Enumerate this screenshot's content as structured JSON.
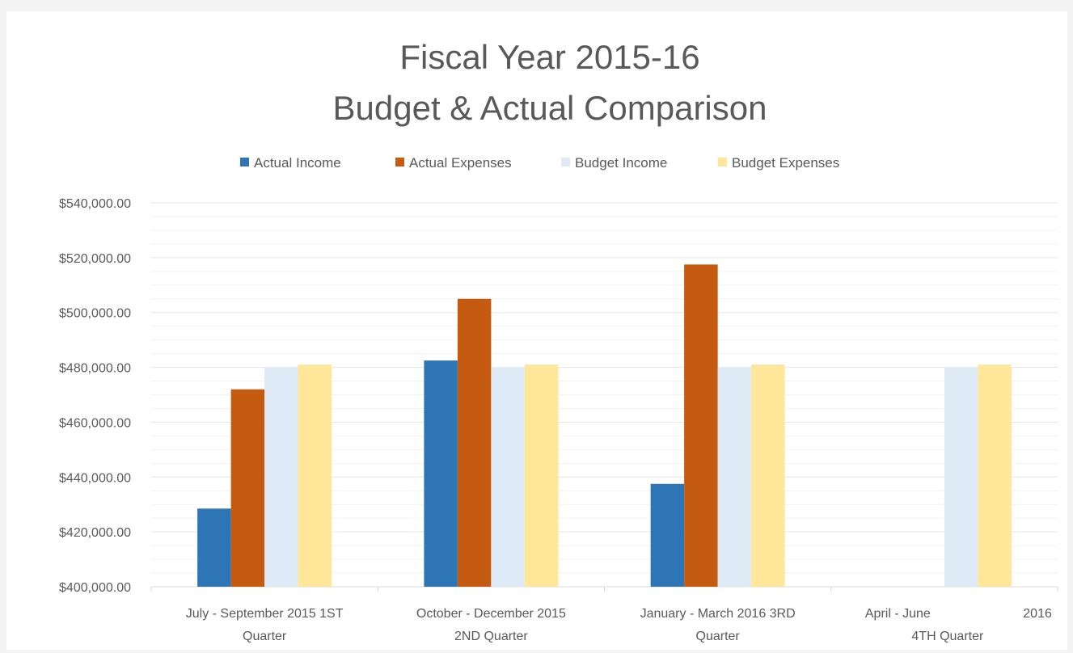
{
  "chart_data": {
    "type": "bar",
    "title": [
      "Fiscal Year 2015-16",
      "Budget & Actual Comparison"
    ],
    "categories": [
      [
        "July - September 2015 1ST",
        "Quarter"
      ],
      [
        "October - December 2015",
        "2ND Quarter"
      ],
      [
        "January - March 2016  3RD",
        "Quarter"
      ],
      [
        "April - June",
        "2016",
        "4TH Quarter"
      ]
    ],
    "series": [
      {
        "name": "Actual Income",
        "color": "#2e75b6",
        "values": [
          428500,
          482500,
          437500,
          null
        ]
      },
      {
        "name": "Actual Expenses",
        "color": "#c55a11",
        "values": [
          472000,
          505000,
          517500,
          null
        ]
      },
      {
        "name": "Budget Income",
        "color": "#deebf7",
        "values": [
          480000,
          480000,
          480000,
          480000
        ]
      },
      {
        "name": "Budget Expenses",
        "color": "#ffe699",
        "values": [
          481000,
          481000,
          481000,
          481000
        ]
      }
    ],
    "ylim": [
      400000,
      540000
    ],
    "ytick_labels": [
      "$400,000.00",
      "$420,000.00",
      "$440,000.00",
      "$460,000.00",
      "$480,000.00",
      "$500,000.00",
      "$520,000.00",
      "$540,000.00"
    ],
    "legend_position": "top",
    "grid": true
  }
}
